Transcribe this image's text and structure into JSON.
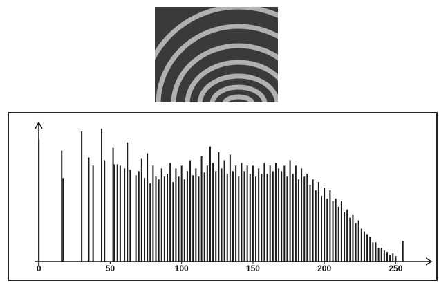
{
  "chart_data": {
    "type": "bar",
    "x": [
      0,
      16,
      17,
      30,
      35,
      38,
      44,
      46,
      52,
      53,
      55,
      57,
      60,
      62,
      64,
      68,
      70,
      72,
      74,
      76,
      78,
      80,
      82,
      84,
      86,
      88,
      90,
      92,
      94,
      96,
      98,
      100,
      102,
      104,
      106,
      108,
      110,
      112,
      114,
      116,
      118,
      120,
      122,
      124,
      126,
      128,
      130,
      132,
      134,
      136,
      138,
      140,
      142,
      144,
      146,
      148,
      150,
      152,
      154,
      156,
      158,
      160,
      162,
      164,
      166,
      168,
      170,
      172,
      174,
      176,
      178,
      180,
      182,
      184,
      186,
      188,
      190,
      192,
      194,
      196,
      198,
      200,
      202,
      204,
      206,
      208,
      210,
      212,
      214,
      216,
      218,
      220,
      222,
      224,
      226,
      228,
      230,
      232,
      234,
      236,
      238,
      240,
      242,
      244,
      246,
      248,
      250,
      255
    ],
    "values": [
      89,
      81,
      61,
      95,
      76,
      70,
      97,
      74,
      83,
      71,
      71,
      70,
      68,
      87,
      67,
      63,
      66,
      75,
      61,
      79,
      57,
      70,
      62,
      60,
      68,
      62,
      64,
      72,
      58,
      68,
      62,
      70,
      60,
      66,
      74,
      63,
      68,
      62,
      77,
      65,
      70,
      84,
      72,
      66,
      80,
      68,
      74,
      64,
      78,
      66,
      70,
      62,
      72,
      66,
      70,
      64,
      70,
      62,
      68,
      64,
      72,
      64,
      70,
      66,
      72,
      68,
      66,
      70,
      62,
      74,
      64,
      70,
      60,
      68,
      62,
      64,
      56,
      60,
      52,
      58,
      48,
      54,
      46,
      52,
      44,
      46,
      40,
      44,
      36,
      38,
      32,
      34,
      28,
      30,
      24,
      22,
      20,
      18,
      14,
      14,
      10,
      10,
      8,
      7,
      5,
      6,
      4,
      15
    ],
    "color": "#1a1a1a",
    "xlim": [
      -3,
      275
    ],
    "ylim": [
      0,
      100
    ],
    "xticks": [
      0,
      50,
      100,
      150,
      200,
      250
    ]
  }
}
